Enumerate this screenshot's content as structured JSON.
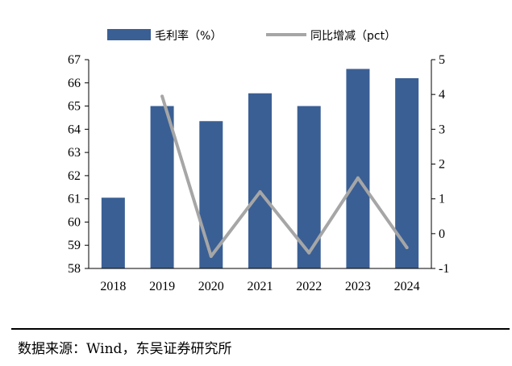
{
  "chart_data": {
    "type": "bar+line",
    "categories": [
      "2018",
      "2019",
      "2020",
      "2021",
      "2022",
      "2023",
      "2024"
    ],
    "series": [
      {
        "name": "毛利率（%）",
        "type": "bar",
        "axis": "left",
        "values": [
          61.05,
          65.0,
          64.35,
          65.55,
          65.0,
          66.6,
          66.2
        ]
      },
      {
        "name": "同比增减（pct）",
        "type": "line",
        "axis": "right",
        "values": [
          null,
          3.95,
          -0.65,
          1.2,
          -0.55,
          1.6,
          -0.4
        ]
      }
    ],
    "ylim_left": [
      58,
      67
    ],
    "yticks_left": [
      "58",
      "59",
      "60",
      "61",
      "62",
      "63",
      "64",
      "65",
      "66",
      "67"
    ],
    "ylim_right": [
      -1,
      5
    ],
    "yticks_right": [
      "-1",
      "0",
      "1",
      "2",
      "3",
      "4",
      "5"
    ],
    "legend_position": "top",
    "grid": false
  },
  "colors": {
    "bar": "#3a5f94",
    "line": "#a6a6a6"
  },
  "source": "数据来源：Wind，东吴证券研究所"
}
